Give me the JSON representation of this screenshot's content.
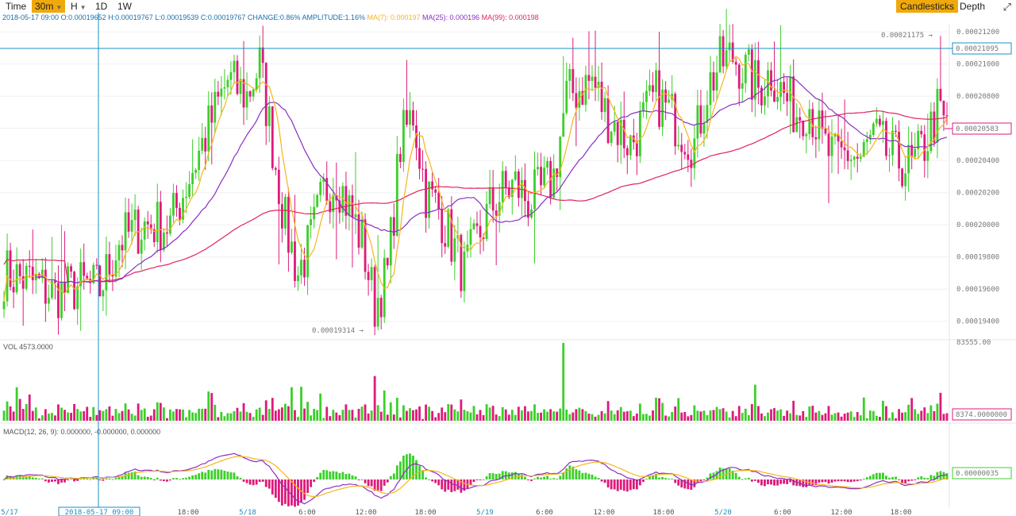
{
  "toolbar": {
    "time_label": "Time",
    "intervals": [
      "30m",
      "H",
      "1D",
      "1W"
    ],
    "active_interval": "30m",
    "view_candles": "Candlesticks",
    "view_depth": "Depth",
    "fullscreen_icon": "fullscreen-icon"
  },
  "info": {
    "date": "2018-05-17 09:00",
    "open": "O:0.00019652",
    "high": "H:0.00019767",
    "low": "L:0.00019539",
    "close": "C:0.00019767",
    "change": "CHANGE:0.86%",
    "amplitude": "AMPLITUDE:1.16%",
    "ma7": "MA(7): 0.000197",
    "ma25": "MA(25): 0.000196",
    "ma99": "MA(99): 0.000198"
  },
  "colors": {
    "up": "#3ccf2a",
    "down": "#de1a7a",
    "ma7": "#f5b51b",
    "ma25": "#8b2ec2",
    "ma99": "#e0245e",
    "crosshair": "#1a8fc4",
    "accent": "#f0a90d"
  },
  "price_axis": {
    "ticks": [
      "0.00021200",
      "0.00021000",
      "0.00020800",
      "0.00020600",
      "0.00020400",
      "0.00020200",
      "0.00020000",
      "0.00019800",
      "0.00019600",
      "0.00019400"
    ],
    "crosshair_price": "0.00021095",
    "last_price": "0.00020583"
  },
  "annotations": {
    "max_label": "0.00021175",
    "min_label": "0.00019314"
  },
  "volume": {
    "label": "VOL 4573.0000",
    "max": "83555.00",
    "current": "8374.0000000"
  },
  "macd": {
    "label": "MACD(12, 26, 9): 0.000000, -0.000000, 0.000000",
    "current": "0.00000035"
  },
  "time_axis": {
    "labels": [
      "5/17",
      "18:00",
      "5/18",
      "6:00",
      "12:00",
      "18:00",
      "5/19",
      "6:00",
      "12:00",
      "18:00",
      "5/20",
      "6:00",
      "12:00",
      "18:00"
    ],
    "date_labels": [
      "5/17",
      "5/18",
      "5/19",
      "5/20"
    ],
    "crosshair_time": "2018-05-17 09:00"
  },
  "chart_data": {
    "type": "candlestick",
    "pair_unit": "price",
    "ylim": [
      0.000193,
      0.0002125
    ],
    "anchors": [
      [
        0,
        0.000197
      ],
      [
        8,
        0.0001965
      ],
      [
        16,
        0.0001957
      ],
      [
        24,
        0.0001962
      ],
      [
        30,
        0.000196
      ],
      [
        36,
        0.000199
      ],
      [
        44,
        0.0002
      ],
      [
        52,
        0.0002
      ],
      [
        58,
        0.000203
      ],
      [
        64,
        0.000206
      ],
      [
        70,
        0.000209
      ],
      [
        76,
        0.000208
      ],
      [
        80,
        0.00021
      ],
      [
        84,
        0.000205
      ],
      [
        88,
        0.0002
      ],
      [
        92,
        0.000197
      ],
      [
        96,
        0.000199
      ],
      [
        100,
        0.000202
      ],
      [
        104,
        0.000203
      ],
      [
        108,
        0.000201
      ],
      [
        112,
        0.000199
      ],
      [
        116,
        0.000195
      ],
      [
        120,
        0.000197
      ],
      [
        124,
        0.000205
      ],
      [
        128,
        0.000207
      ],
      [
        132,
        0.000202
      ],
      [
        136,
        0.000201
      ],
      [
        140,
        0.000199
      ],
      [
        144,
        0.000197
      ],
      [
        148,
        0.000199
      ],
      [
        152,
        0.000201
      ],
      [
        156,
        0.000202
      ],
      [
        160,
        0.0002025
      ],
      [
        164,
        0.0002015
      ],
      [
        168,
        0.000202
      ],
      [
        172,
        0.000203
      ],
      [
        176,
        0.000208
      ],
      [
        180,
        0.0002085
      ],
      [
        184,
        0.000209
      ],
      [
        188,
        0.000207
      ],
      [
        192,
        0.000206
      ],
      [
        196,
        0.000205
      ],
      [
        200,
        0.0002065
      ],
      [
        204,
        0.000208
      ],
      [
        208,
        0.000207
      ],
      [
        212,
        0.000206
      ],
      [
        216,
        0.000205
      ],
      [
        220,
        0.0002085
      ],
      [
        224,
        0.00021
      ],
      [
        228,
        0.0002105
      ],
      [
        232,
        0.0002095
      ],
      [
        236,
        0.0002085
      ],
      [
        240,
        0.0002095
      ],
      [
        244,
        0.000208
      ],
      [
        248,
        0.000207
      ],
      [
        252,
        0.0002075
      ],
      [
        256,
        0.000205
      ],
      [
        260,
        0.000204
      ],
      [
        264,
        0.0002045
      ],
      [
        268,
        0.000204
      ],
      [
        272,
        0.0002055
      ],
      [
        276,
        0.0002045
      ],
      [
        280,
        0.000204
      ],
      [
        284,
        0.0002035
      ],
      [
        288,
        0.000205
      ],
      [
        292,
        0.000207
      ],
      [
        295,
        0.000206
      ]
    ]
  }
}
